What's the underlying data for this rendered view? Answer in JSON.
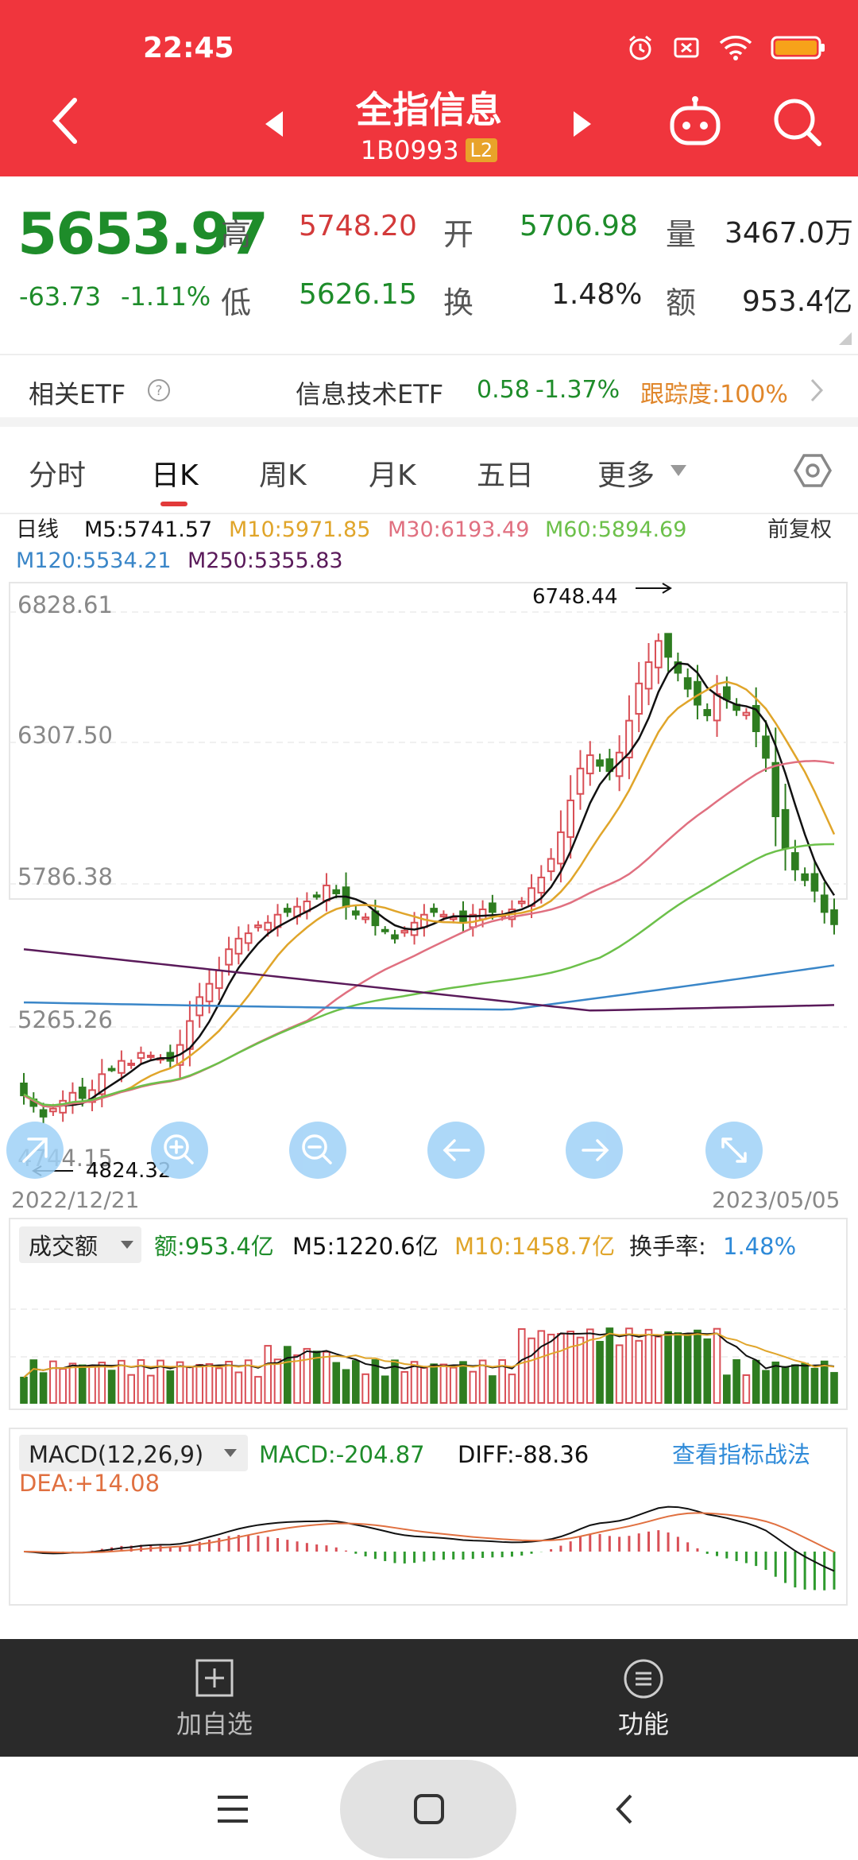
{
  "status": {
    "time": "22:45"
  },
  "header": {
    "title": "全指信息",
    "code": "1B0993",
    "badge": "L2"
  },
  "quote": {
    "price": "5653.97",
    "change": "-63.73",
    "change_pct": "-1.11%",
    "high_label": "高",
    "high": "5748.20",
    "low_label": "低",
    "low": "5626.15",
    "open_label": "开",
    "open": "5706.98",
    "turnover_label": "换",
    "turnover": "1.48%",
    "volume_label": "量",
    "volume": "3467.0万",
    "amount_label": "额",
    "amount": "953.4亿"
  },
  "etf": {
    "label": "相关ETF",
    "name": "信息技术ETF",
    "price": "0.58",
    "pct": "-1.37%",
    "tracking": "跟踪度:100%"
  },
  "tabs": [
    "分时",
    "日K",
    "周K",
    "月K",
    "五日",
    "更多"
  ],
  "active_tab": "日K",
  "kline": {
    "period_label": "日线",
    "ma": [
      {
        "label": "M5:5741.57",
        "color": "#111111"
      },
      {
        "label": "M10:5971.85",
        "color": "#e0a52a"
      },
      {
        "label": "M30:6193.49",
        "color": "#e07080"
      },
      {
        "label": "M60:5894.69",
        "color": "#6cc04a"
      },
      {
        "label": "M120:5534.21",
        "color": "#3a86c8"
      },
      {
        "label": "M250:5355.83",
        "color": "#5a1a5a"
      }
    ],
    "adjust": "前复权",
    "y_ticks": [
      "6828.61",
      "6307.50",
      "5786.38",
      "5265.26",
      "4744.15"
    ],
    "max_label": "6748.44",
    "min_label": "4824.32",
    "date_start": "2022/12/21",
    "date_end": "2023/05/05"
  },
  "volume_panel": {
    "selector": "成交额",
    "amount": "额:953.4亿",
    "m5": "M5:1220.6亿",
    "m10": "M10:1458.7亿",
    "turnover_label": "换手率:",
    "turnover": "1.48%"
  },
  "macd_panel": {
    "selector": "MACD(12,26,9)",
    "macd": "MACD:-204.87",
    "diff": "DIFF:-88.36",
    "dea": "DEA:+14.08",
    "link": "查看指标战法"
  },
  "bottom": {
    "add": "加自选",
    "func": "功能"
  },
  "chart_data": {
    "type": "candlestick",
    "x_start": "2022/12/21",
    "x_end": "2023/05/05",
    "ylim": [
      4744.15,
      6828.61
    ],
    "close": [
      5010,
      4970,
      4930,
      4960,
      4990,
      5020,
      5000,
      5030,
      5090,
      5110,
      5140,
      5130,
      5170,
      5160,
      5150,
      5140,
      5200,
      5290,
      5380,
      5430,
      5480,
      5560,
      5600,
      5620,
      5650,
      5660,
      5690,
      5700,
      5720,
      5740,
      5760,
      5800,
      5770,
      5720,
      5690,
      5680,
      5650,
      5630,
      5600,
      5630,
      5660,
      5690,
      5700,
      5690,
      5680,
      5660,
      5690,
      5710,
      5700,
      5690,
      5710,
      5740,
      5790,
      5830,
      5900,
      6000,
      6120,
      6240,
      6290,
      6250,
      6230,
      6300,
      6420,
      6560,
      6640,
      6720,
      6660,
      6600,
      6540,
      6480,
      6440,
      6520,
      6500,
      6460,
      6450,
      6380,
      6280,
      6060,
      5940,
      5860,
      5820,
      5780,
      5700,
      5653.97
    ],
    "high": 6748.44,
    "low": 4824.32
  }
}
